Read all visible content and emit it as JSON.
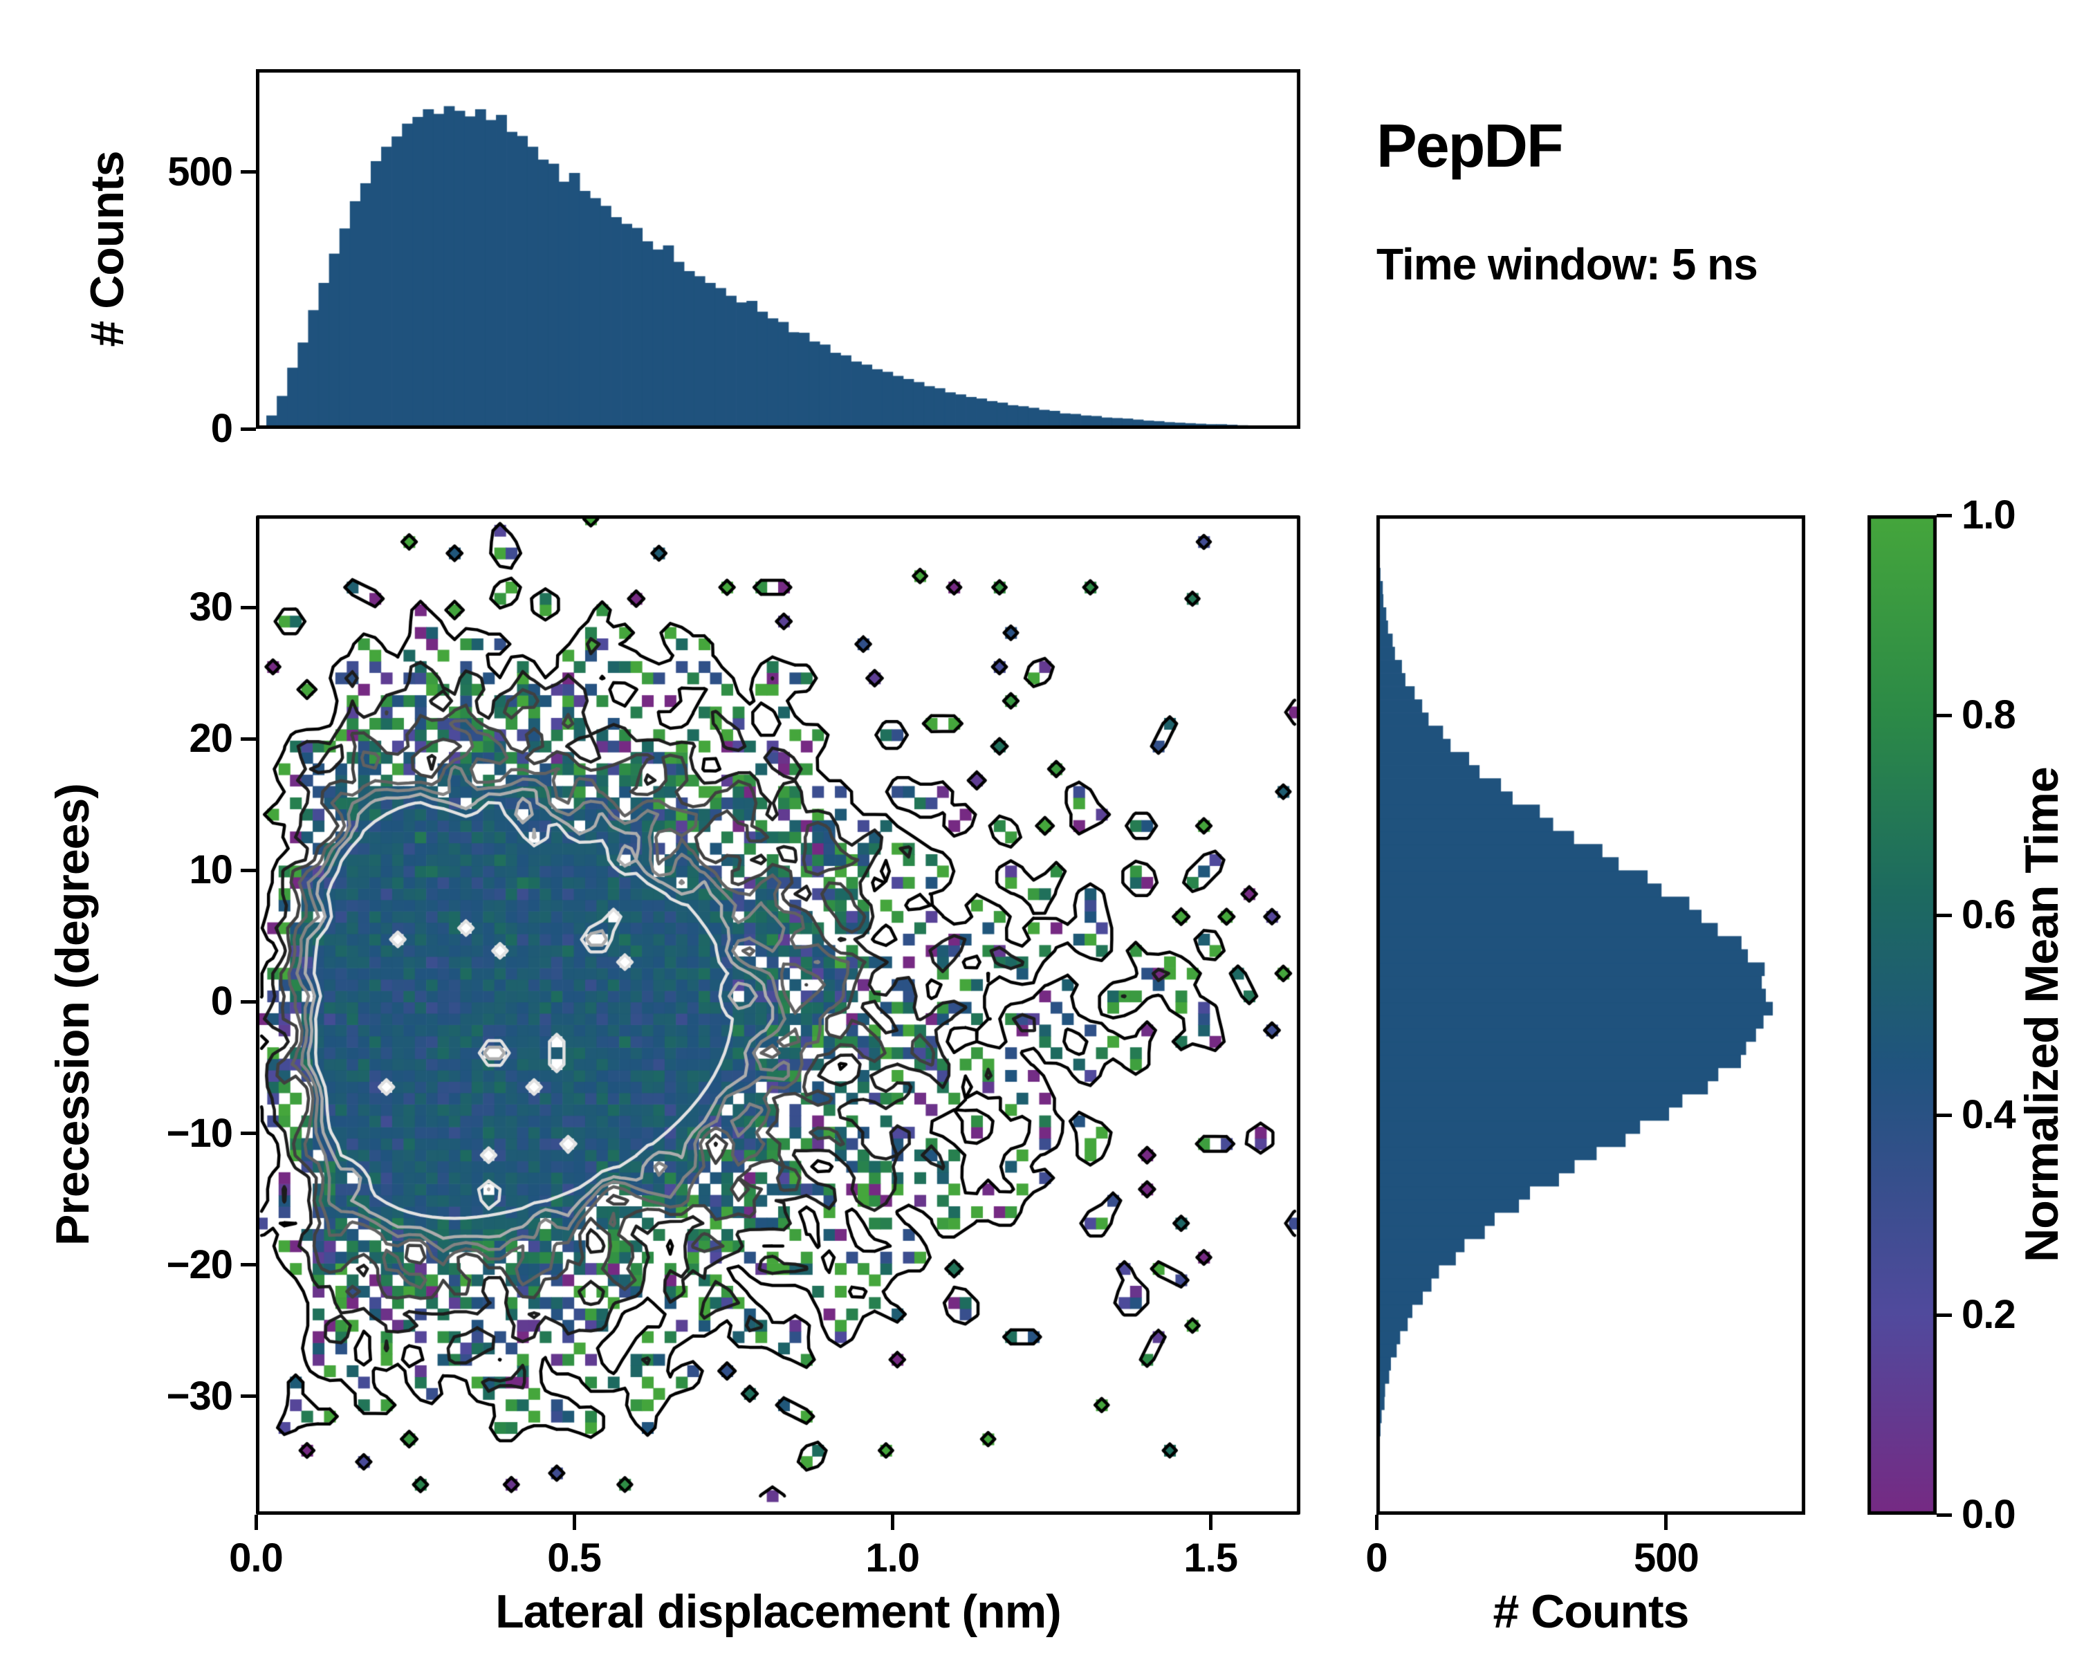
{
  "figure": {
    "title": "PepDF",
    "subtitle": "Time window: 5 ns",
    "background": "#ffffff",
    "axis_color": "#000000",
    "hist_fill": "#1f527d"
  },
  "chart_data": {
    "type": "heatmap",
    "title": "PepDF",
    "annotation": "Time window: 5 ns",
    "legend_position": "right-colorbar",
    "grid": false,
    "panels": {
      "top_histogram": {
        "type": "bar",
        "ylabel": "# Counts",
        "xlim": [
          0,
          1.641
        ],
        "ylim": [
          0,
          700
        ],
        "yticks": [
          {
            "value": 0,
            "label": "0"
          },
          {
            "value": 500,
            "label": "500"
          }
        ],
        "bin_start": 0,
        "bin_width": 0.0164,
        "values": [
          3,
          26,
          64,
          119,
          168,
          231,
          284,
          341,
          390,
          443,
          478,
          521,
          549,
          569,
          594,
          607,
          622,
          613,
          628,
          619,
          608,
          622,
          601,
          611,
          578,
          570,
          549,
          524,
          516,
          481,
          498,
          463,
          449,
          434,
          412,
          399,
          391,
          365,
          349,
          357,
          325,
          307,
          297,
          284,
          274,
          259,
          246,
          249,
          228,
          215,
          208,
          188,
          187,
          170,
          164,
          148,
          143,
          131,
          125,
          116,
          111,
          103,
          97,
          91,
          83,
          79,
          71,
          67,
          62,
          59,
          54,
          51,
          46,
          44,
          41,
          37,
          35,
          30,
          29,
          26,
          25,
          22,
          21,
          20,
          18,
          16,
          15,
          13,
          12,
          11,
          10,
          9,
          9,
          8,
          7,
          6,
          5,
          5,
          4,
          3
        ]
      },
      "joint": {
        "type": "heatmap",
        "xlabel": "Lateral displacement (nm)",
        "ylabel": "Precession (degrees)",
        "xlim": [
          0,
          1.641
        ],
        "ylim": [
          -39,
          37
        ],
        "xticks": [
          {
            "value": 0,
            "label": "0.0"
          },
          {
            "value": 0.5,
            "label": "0.5"
          },
          {
            "value": 1.0,
            "label": "1.0"
          },
          {
            "value": 1.5,
            "label": "1.5"
          }
        ],
        "yticks": [
          {
            "value": 30,
            "label": "30"
          },
          {
            "value": 20,
            "label": "20"
          },
          {
            "value": 10,
            "label": "10"
          },
          {
            "value": 0,
            "label": "0"
          },
          {
            "value": -10,
            "label": "−10"
          },
          {
            "value": -20,
            "label": "−20"
          },
          {
            "value": -30,
            "label": "−30"
          }
        ],
        "color_label": "Normalized Mean Time",
        "generator": {
          "seed": 20,
          "nx": 92,
          "ny": 88,
          "x_range": [
            0,
            1.641
          ],
          "y_range": [
            -38,
            38
          ],
          "x_mode": 0.31,
          "x_shape": 1.8,
          "y_mean": -0.5,
          "y_sigma": 11.5,
          "fill_power": 0.75,
          "fill_scale": 2.0,
          "fill_max": 0.97,
          "value_center": 0.48,
          "value_noise_min": 0.07,
          "value_noise_max": 0.52,
          "contour_levels": [
            0.05,
            0.18,
            0.32,
            0.46,
            0.6,
            0.72,
            0.83
          ],
          "contour_colors": [
            "#000000",
            "#1c1c1c",
            "#404040",
            "#616161",
            "#838383",
            "#adadad",
            "#e2e2e2"
          ]
        }
      },
      "right_histogram": {
        "type": "bar",
        "orientation": "horizontal",
        "xlabel": "# Counts",
        "xlim": [
          0,
          740
        ],
        "xticks": [
          {
            "value": 0,
            "label": "0"
          },
          {
            "value": 500,
            "label": "500"
          }
        ],
        "bin_start": -38,
        "bin_width": 1,
        "values": [
          2,
          2,
          3,
          5,
          6,
          7,
          9,
          14,
          15,
          22,
          25,
          35,
          41,
          54,
          62,
          80,
          95,
          108,
          137,
          152,
          187,
          204,
          246,
          265,
          315,
          342,
          380,
          430,
          455,
          505,
          528,
          572,
          590,
          629,
          638,
          655,
          668,
          684,
          672,
          665,
          670,
          641,
          630,
          589,
          561,
          540,
          492,
          468,
          418,
          390,
          341,
          305,
          282,
          235,
          215,
          178,
          160,
          128,
          115,
          90,
          79,
          66,
          50,
          44,
          32,
          28,
          20,
          17,
          12,
          11,
          7,
          6,
          4,
          3,
          2,
          2
        ]
      },
      "colorbar": {
        "label": "Normalized Mean Time",
        "ticks": [
          {
            "value": 0,
            "label": "0.0"
          },
          {
            "value": 0.2,
            "label": "0.2"
          },
          {
            "value": 0.4,
            "label": "0.4"
          },
          {
            "value": 0.6,
            "label": "0.6"
          },
          {
            "value": 0.8,
            "label": "0.8"
          },
          {
            "value": 1,
            "label": "1.0"
          }
        ],
        "stops": [
          [
            0,
            "#762a83"
          ],
          [
            0.2,
            "#514a9d"
          ],
          [
            0.45,
            "#20547e"
          ],
          [
            0.62,
            "#1d6a60"
          ],
          [
            0.8,
            "#2c8a47"
          ],
          [
            1,
            "#45a63c"
          ]
        ]
      }
    }
  }
}
